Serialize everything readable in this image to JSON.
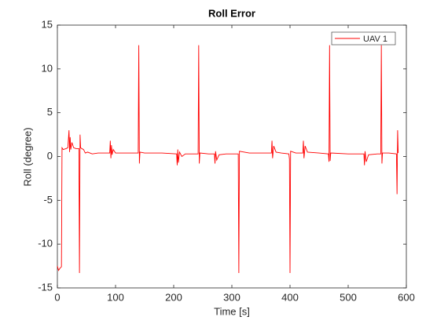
{
  "chart_data": {
    "type": "line",
    "title": "Roll Error",
    "xlabel": "Time [s]",
    "ylabel": "Roll (degree)",
    "x": [
      0,
      2,
      5,
      7,
      8,
      10,
      15,
      18,
      20,
      21,
      22,
      23,
      25,
      28,
      32,
      35,
      37,
      38,
      39,
      40,
      42,
      45,
      48,
      52,
      60,
      70,
      85,
      90,
      91,
      92,
      93,
      94,
      96,
      100,
      110,
      130,
      139,
      140,
      141,
      142,
      150,
      180,
      205,
      206,
      207,
      208,
      210,
      214,
      220,
      240,
      242,
      243,
      244,
      245,
      260,
      270,
      271,
      272,
      274,
      278,
      290,
      305,
      311,
      312,
      313,
      330,
      365,
      368,
      369,
      370,
      372,
      376,
      385,
      398,
      399,
      400,
      401,
      410,
      420,
      422,
      423,
      424,
      426,
      430,
      450,
      466,
      467,
      468,
      469,
      470,
      500,
      527,
      528,
      529,
      531,
      535,
      550,
      556,
      557,
      558,
      559,
      570,
      583,
      584,
      585,
      586
    ],
    "series": [
      {
        "name": "UAV 1",
        "color": "#ff0000",
        "values": [
          -12.5,
          -13,
          -12.7,
          -12.6,
          1,
          0.8,
          0.9,
          1,
          3,
          0.5,
          2.2,
          0.8,
          1.6,
          1,
          0.9,
          0.9,
          0.9,
          -13.3,
          2.5,
          1,
          0.9,
          0.8,
          0.4,
          0.5,
          0.3,
          0.4,
          0.4,
          0.4,
          1.8,
          -0.2,
          1.3,
          0.2,
          0.8,
          0.4,
          0.4,
          0.4,
          0.4,
          12.7,
          -0.8,
          0.5,
          0.4,
          0.4,
          0.3,
          -1,
          0.8,
          -0.7,
          0.5,
          0,
          0.3,
          0.3,
          0.3,
          12.7,
          -0.8,
          0.4,
          0.3,
          0.3,
          -0.8,
          0.6,
          -0.4,
          0.2,
          0.3,
          0.3,
          0.3,
          -13.3,
          0.6,
          0.4,
          0.4,
          0.4,
          1.8,
          -0.2,
          1.2,
          0.5,
          0.4,
          0.3,
          -0.3,
          -13.3,
          0.6,
          0.4,
          0.4,
          0.4,
          1.8,
          -0.2,
          1.2,
          0.5,
          0.4,
          0.3,
          -0.6,
          12.7,
          -0.5,
          0.4,
          0.3,
          0.3,
          -1,
          0.6,
          -0.6,
          0.2,
          0.3,
          0.3,
          12.7,
          -0.8,
          0.4,
          0.4,
          0.3,
          -4.3,
          3,
          0.4
        ]
      }
    ],
    "xlim": [
      0,
      600
    ],
    "xticks": [
      0,
      100,
      200,
      300,
      400,
      500,
      600
    ],
    "ylim": [
      -15,
      15
    ],
    "yticks": [
      -15,
      -10,
      -5,
      0,
      5,
      10,
      15
    ],
    "legend": "upper right",
    "grid": false
  }
}
